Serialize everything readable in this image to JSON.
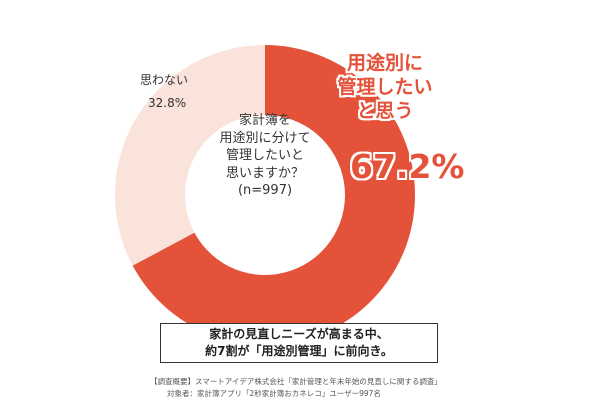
{
  "chart_data": {
    "type": "donut",
    "center_text": "家計簿を\n用途別に分けて\n管理したいと\n思いますか？\n(n=997)",
    "categories": [
      "用途別に\n管理したい\nと思う",
      "思わない"
    ],
    "values": [
      67.2,
      32.8
    ],
    "value_labels": [
      "67.2%",
      "32.8%"
    ],
    "colors": [
      "#e4523a",
      "#f9e3da"
    ]
  },
  "summary": "家計の見直しニーズが高まる中、\n約7割が「用途別管理」に前向き。",
  "footnote": [
    "【調査概要】スマートアイデア株式会社「家計管理と年末年始の見直しに関する調査」",
    "対象者：家計簿アプリ「2秒家計簿おカネレコ」ユーザー997名"
  ]
}
